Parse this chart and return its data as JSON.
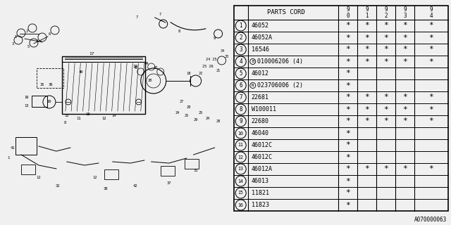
{
  "diagram_ref": "A070000063",
  "bg_color": "#f0f0f0",
  "table_bg": "#ffffff",
  "rows": [
    {
      "num": "1",
      "part": "46052",
      "special": null,
      "cols": [
        "*",
        "*",
        "*",
        "*",
        "*"
      ]
    },
    {
      "num": "2",
      "part": "46052A",
      "special": null,
      "cols": [
        "*",
        "*",
        "*",
        "*",
        "*"
      ]
    },
    {
      "num": "3",
      "part": "16546",
      "special": null,
      "cols": [
        "*",
        "*",
        "*",
        "*",
        "*"
      ]
    },
    {
      "num": "4",
      "part": "010006206 (4)",
      "special": "B",
      "cols": [
        "*",
        "*",
        "*",
        "*",
        "*"
      ]
    },
    {
      "num": "5",
      "part": "46012",
      "special": null,
      "cols": [
        "*",
        "",
        "",
        "",
        ""
      ]
    },
    {
      "num": "6",
      "part": "023706006 (2)",
      "special": "N",
      "cols": [
        "*",
        "",
        "",
        "",
        ""
      ]
    },
    {
      "num": "7",
      "part": "22681",
      "special": null,
      "cols": [
        "*",
        "*",
        "*",
        "*",
        "*"
      ]
    },
    {
      "num": "8",
      "part": "W100011",
      "special": null,
      "cols": [
        "*",
        "*",
        "*",
        "*",
        "*"
      ]
    },
    {
      "num": "9",
      "part": "22680",
      "special": null,
      "cols": [
        "*",
        "*",
        "*",
        "*",
        "*"
      ]
    },
    {
      "num": "10",
      "part": "46040",
      "special": null,
      "cols": [
        "*",
        "",
        "",
        "",
        ""
      ]
    },
    {
      "num": "11",
      "part": "46012C",
      "special": null,
      "cols": [
        "*",
        "",
        "",
        "",
        ""
      ]
    },
    {
      "num": "12",
      "part": "46012C",
      "special": null,
      "cols": [
        "*",
        "",
        "",
        "",
        ""
      ]
    },
    {
      "num": "13",
      "part": "46012A",
      "special": null,
      "cols": [
        "*",
        "*",
        "*",
        "*",
        "*"
      ]
    },
    {
      "num": "14",
      "part": "46013",
      "special": null,
      "cols": [
        "*",
        "",
        "",
        "",
        ""
      ]
    },
    {
      "num": "15",
      "part": "11821",
      "special": null,
      "cols": [
        "*",
        "",
        "",
        "",
        ""
      ]
    },
    {
      "num": "16",
      "part": "11823",
      "special": null,
      "cols": [
        "*",
        "",
        "",
        "",
        ""
      ]
    }
  ],
  "year_cols": [
    "9\n0",
    "9\n1",
    "9\n2",
    "9\n3",
    "9\n4"
  ],
  "header_label": "PARTS CORD",
  "line_color": "#000000",
  "text_color": "#000000",
  "font_size_part": 6.0,
  "font_size_num": 5.5,
  "font_size_star": 8.0,
  "font_size_header": 6.5,
  "font_size_ref": 5.5
}
